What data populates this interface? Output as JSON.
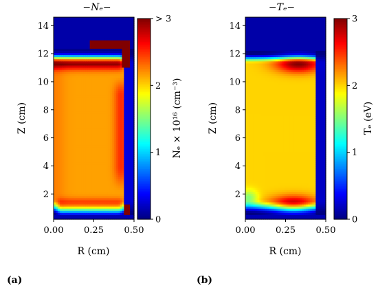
{
  "figure": {
    "panel_a_label": "(a)",
    "panel_b_label": "(b)"
  },
  "chart_data": [
    {
      "type": "heatmap",
      "title": "−Nₑ−",
      "xlabel": "R (cm)",
      "ylabel": "Z (cm)",
      "colorbar_label": "Nₑ × 10¹⁶ (cm⁻³)",
      "xlim": [
        0.0,
        0.5
      ],
      "ylim": [
        0.2,
        14.6
      ],
      "x_ticks": [
        "0.00",
        "0.25",
        "0.50"
      ],
      "y_ticks": [
        "2",
        "4",
        "6",
        "8",
        "10",
        "12",
        "14"
      ],
      "colorbar_range": [
        0,
        3
      ],
      "colorbar_ticks": [
        "0",
        "1",
        "2",
        "> 3"
      ],
      "colormap": "jet",
      "field": "electron density",
      "description_values": {
        "core_plateau": 2.2,
        "gap_region_right": 0.2,
        "top_background": 0.1,
        "saturated_patch_top_right": 3.0
      }
    },
    {
      "type": "heatmap",
      "title": "−Tₑ−",
      "xlabel": "R (cm)",
      "ylabel": "Z (cm)",
      "colorbar_label": "Tₑ (eV)",
      "xlim": [
        0.0,
        0.5
      ],
      "ylim": [
        0.2,
        14.6
      ],
      "x_ticks": [
        "0.00",
        "0.25",
        "0.50"
      ],
      "y_ticks": [
        "2",
        "4",
        "6",
        "8",
        "10",
        "12",
        "14"
      ],
      "colorbar_range": [
        0,
        3
      ],
      "colorbar_ticks": [
        "0",
        "1",
        "2",
        "3"
      ],
      "colormap": "jet",
      "field": "electron temperature",
      "description_values": {
        "core_plateau": 2.0,
        "electrode_edge_peak": 2.9,
        "top_background": 0.1
      }
    }
  ],
  "colors": {
    "jet": [
      "#00007f",
      "#0000ff",
      "#007fff",
      "#00ffff",
      "#7fff7f",
      "#ffff00",
      "#ff7f00",
      "#ff0000",
      "#7f0000"
    ]
  }
}
